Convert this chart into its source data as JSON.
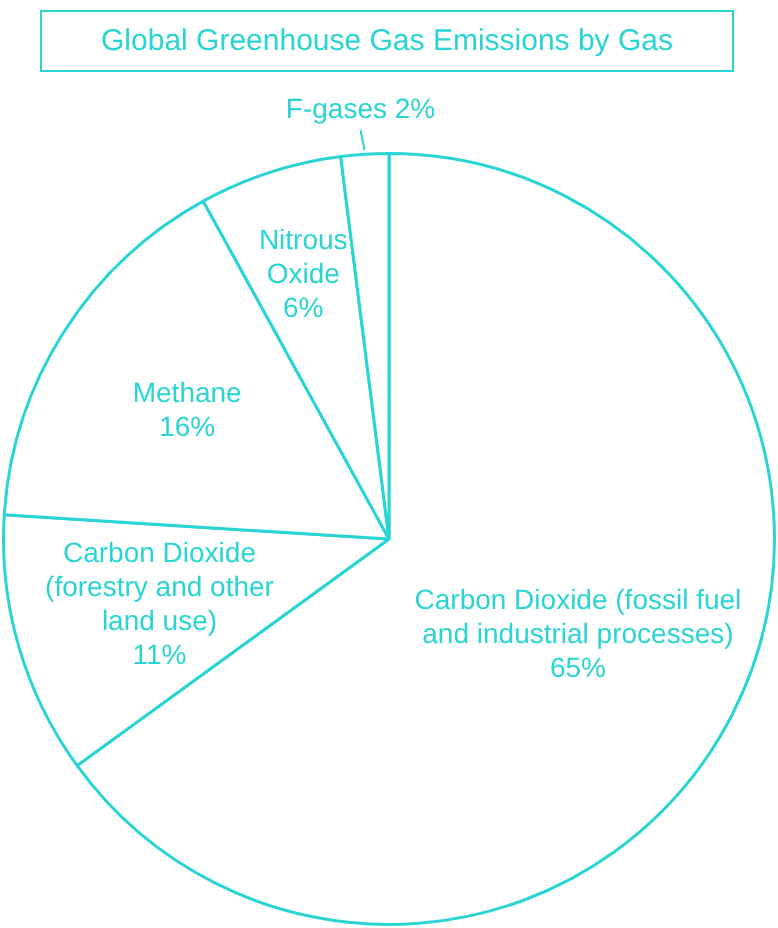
{
  "chart_data": {
    "type": "pie",
    "title": "Global Greenhouse Gas Emissions by Gas",
    "categories": [
      "Carbon Dioxide (fossil fuel and industrial processes)",
      "Carbon Dioxide (forestry and other land use)",
      "Methane",
      "Nitrous Oxide",
      "F-gases"
    ],
    "values": [
      65,
      11,
      16,
      6,
      2
    ],
    "value_labels": [
      "65%",
      "11%",
      "16%",
      "6%",
      "2%"
    ],
    "colors": [
      "#ffffff",
      "#ffffff",
      "#ffffff",
      "#ffffff",
      "#ffffff"
    ]
  }
}
